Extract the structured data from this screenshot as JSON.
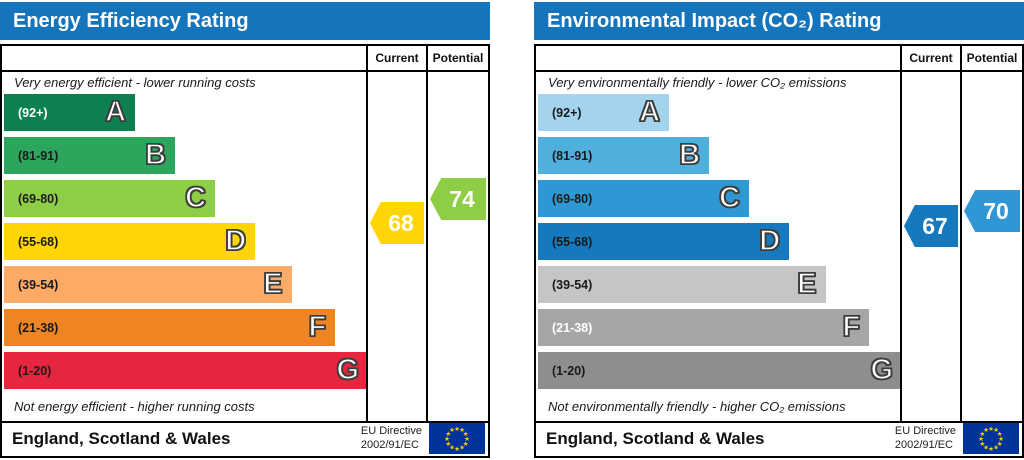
{
  "colors": {
    "header_bg": "#1475bd",
    "border": "#000000",
    "flag_bg": "#003399",
    "flag_star": "#ffcc00",
    "epc_current_arrow": "#ffd505",
    "epc_potential_arrow": "#8dce46",
    "co2_current_arrow": "#1779bd",
    "co2_potential_arrow": "#2f98d4"
  },
  "columns": {
    "current": "Current",
    "potential": "Potential"
  },
  "footer": {
    "region": "England, Scotland & Wales",
    "directive_line1": "EU Directive",
    "directive_line2": "2002/91/EC",
    "flag": "eu-flag"
  },
  "panels": [
    {
      "title": "Energy Efficiency Rating",
      "top_caption": "Very energy efficient - lower running costs",
      "bottom_caption": "Not energy efficient - higher running costs",
      "bands": [
        {
          "letter": "A",
          "range": "(92+)",
          "min": 92,
          "max": 100,
          "width_pct": 36,
          "color": "#0d8050",
          "range_text_color": "#ffffff"
        },
        {
          "letter": "B",
          "range": "(81-91)",
          "min": 81,
          "max": 91,
          "width_pct": 47,
          "color": "#2ba65c",
          "range_text_color": "#1a1a1a"
        },
        {
          "letter": "C",
          "range": "(69-80)",
          "min": 69,
          "max": 80,
          "width_pct": 58,
          "color": "#8dce46",
          "range_text_color": "#1a1a1a"
        },
        {
          "letter": "D",
          "range": "(55-68)",
          "min": 55,
          "max": 68,
          "width_pct": 69,
          "color": "#ffd505",
          "range_text_color": "#1a1a1a"
        },
        {
          "letter": "E",
          "range": "(39-54)",
          "min": 39,
          "max": 54,
          "width_pct": 79,
          "color": "#fbab66",
          "range_text_color": "#1a1a1a"
        },
        {
          "letter": "F",
          "range": "(21-38)",
          "min": 21,
          "max": 38,
          "width_pct": 91,
          "color": "#ee8422",
          "range_text_color": "#1a1a1a"
        },
        {
          "letter": "G",
          "range": "(1-20)",
          "min": 1,
          "max": 20,
          "width_pct": 100,
          "color": "#e6263e",
          "range_text_color": "#1a1a1a"
        }
      ],
      "current": {
        "value": 68,
        "band": "D",
        "color": "#ffd505"
      },
      "potential": {
        "value": 74,
        "band": "C",
        "color": "#8dce46"
      }
    },
    {
      "title": "Environmental Impact (CO₂) Rating",
      "top_caption": "Very environmentally friendly - lower CO₂ emissions",
      "bottom_caption": "Not environmentally friendly - higher CO₂ emissions",
      "bands": [
        {
          "letter": "A",
          "range": "(92+)",
          "min": 92,
          "max": 100,
          "width_pct": 36,
          "color": "#a3d3ed",
          "range_text_color": "#1a1a1a"
        },
        {
          "letter": "B",
          "range": "(81-91)",
          "min": 81,
          "max": 91,
          "width_pct": 47,
          "color": "#51afde",
          "range_text_color": "#1a1a1a"
        },
        {
          "letter": "C",
          "range": "(69-80)",
          "min": 69,
          "max": 80,
          "width_pct": 58,
          "color": "#2f98d4",
          "range_text_color": "#1a1a1a"
        },
        {
          "letter": "D",
          "range": "(55-68)",
          "min": 55,
          "max": 68,
          "width_pct": 69,
          "color": "#1779bd",
          "range_text_color": "#1a1a1a"
        },
        {
          "letter": "E",
          "range": "(39-54)",
          "min": 39,
          "max": 54,
          "width_pct": 79,
          "color": "#c5c5c5",
          "range_text_color": "#1a1a1a"
        },
        {
          "letter": "F",
          "range": "(21-38)",
          "min": 21,
          "max": 38,
          "width_pct": 91,
          "color": "#a6a6a6",
          "range_text_color": "#ffffff"
        },
        {
          "letter": "G",
          "range": "(1-20)",
          "min": 1,
          "max": 20,
          "width_pct": 100,
          "color": "#8e8e8e",
          "range_text_color": "#1a1a1a"
        }
      ],
      "current": {
        "value": 67,
        "band": "D",
        "color": "#1779bd"
      },
      "potential": {
        "value": 70,
        "band": "C",
        "color": "#2f98d4"
      }
    }
  ],
  "chart_data": [
    {
      "type": "bar",
      "title": "Energy Efficiency Rating",
      "categories": [
        "A (92+)",
        "B (81-91)",
        "C (69-80)",
        "D (55-68)",
        "E (39-54)",
        "F (21-38)",
        "G (1-20)"
      ],
      "values": [
        36,
        47,
        58,
        69,
        79,
        91,
        100
      ],
      "ylabel": "schematic band length (% of chart width)",
      "annotations": {
        "current": 68,
        "current_band": "D",
        "potential": 74,
        "potential_band": "C"
      },
      "top_caption": "Very energy efficient - lower running costs",
      "bottom_caption": "Not energy efficient - higher running costs",
      "footer": "England, Scotland & Wales — EU Directive 2002/91/EC"
    },
    {
      "type": "bar",
      "title": "Environmental Impact (CO₂) Rating",
      "categories": [
        "A (92+)",
        "B (81-91)",
        "C (69-80)",
        "D (55-68)",
        "E (39-54)",
        "F (21-38)",
        "G (1-20)"
      ],
      "values": [
        36,
        47,
        58,
        69,
        79,
        91,
        100
      ],
      "ylabel": "schematic band length (% of chart width)",
      "annotations": {
        "current": 67,
        "current_band": "D",
        "potential": 70,
        "potential_band": "C"
      },
      "top_caption": "Very environmentally friendly - lower CO₂ emissions",
      "bottom_caption": "Not environmentally friendly - higher CO₂ emissions",
      "footer": "England, Scotland & Wales — EU Directive 2002/91/EC"
    }
  ]
}
